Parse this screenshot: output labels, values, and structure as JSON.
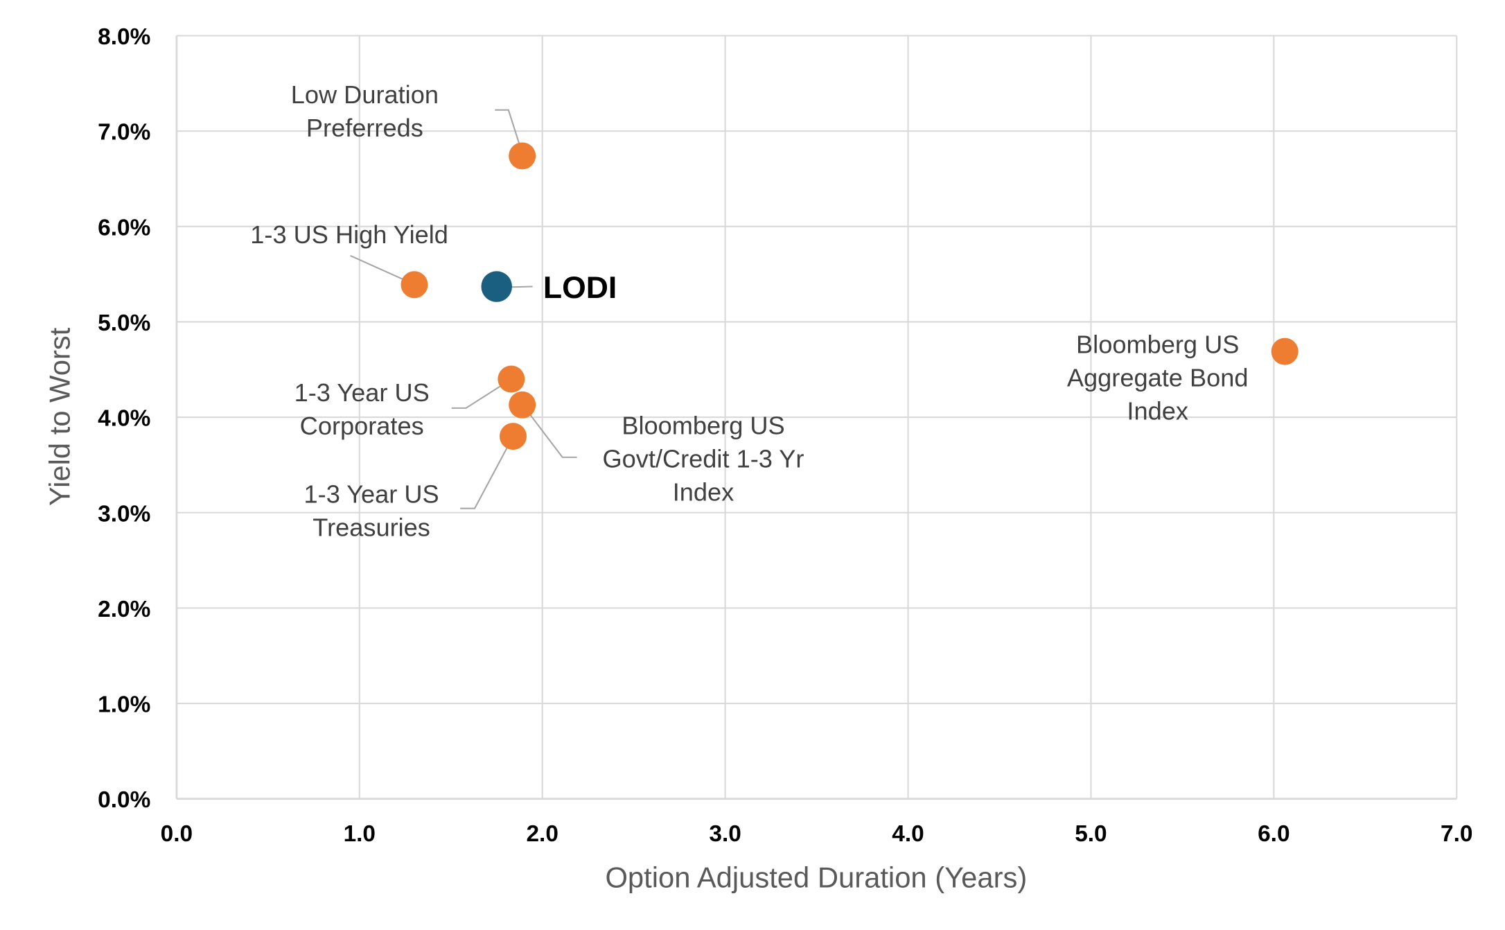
{
  "chart_data": {
    "type": "scatter",
    "title": "",
    "xlabel": "Option Adjusted Duration (Years)",
    "ylabel": "Yield to Worst",
    "xlim": [
      0,
      7
    ],
    "ylim": [
      0,
      8
    ],
    "x_ticks": [
      "0.0",
      "1.0",
      "2.0",
      "3.0",
      "4.0",
      "5.0",
      "6.0",
      "7.0"
    ],
    "y_ticks": [
      "0.0%",
      "1.0%",
      "2.0%",
      "3.0%",
      "4.0%",
      "5.0%",
      "6.0%",
      "7.0%",
      "8.0%"
    ],
    "grid": true,
    "legend": "none",
    "colors": {
      "highlight": "#1a5f80",
      "other": "#ee7d31",
      "grid": "#d9d9d9",
      "leader": "#a6a6a6"
    },
    "points": [
      {
        "label": [
          "Low Duration",
          "Preferreds"
        ],
        "x": 1.89,
        "y": 6.74,
        "highlight": false
      },
      {
        "label": [
          "1-3 US High Yield"
        ],
        "x": 1.3,
        "y": 5.39,
        "highlight": false
      },
      {
        "label": [
          "LODI"
        ],
        "x": 1.75,
        "y": 5.37,
        "highlight": true
      },
      {
        "label": [
          "1-3 Year US",
          "Corporates"
        ],
        "x": 1.83,
        "y": 4.4,
        "highlight": false
      },
      {
        "label": [
          "Bloomberg US",
          "Govt/Credit  1-3 Yr",
          "Index"
        ],
        "x": 1.89,
        "y": 4.13,
        "highlight": false
      },
      {
        "label": [
          "1-3 Year US",
          "Treasuries"
        ],
        "x": 1.84,
        "y": 3.8,
        "highlight": false
      },
      {
        "label": [
          "Bloomberg US",
          "Aggregate Bond",
          "Index"
        ],
        "x": 6.06,
        "y": 4.69,
        "highlight": false
      }
    ]
  }
}
